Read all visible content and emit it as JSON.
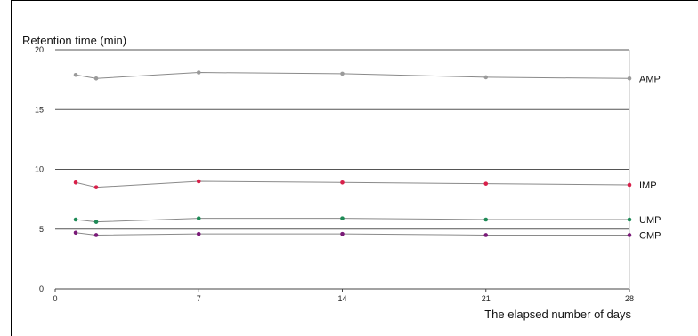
{
  "chart_data": {
    "type": "line",
    "title": "",
    "ylabel": "Retention time (min)",
    "xlabel": "The elapsed number of days",
    "xlim": [
      0,
      28
    ],
    "ylim": [
      0,
      20
    ],
    "x_ticks": [
      0,
      7,
      14,
      21,
      28
    ],
    "y_ticks": [
      0,
      5,
      10,
      15,
      20
    ],
    "x": [
      1,
      2,
      7,
      14,
      21,
      28
    ],
    "grid": "horizontal lines at 5, 10, 15, 20",
    "legend": "labels at right end of each line",
    "series": [
      {
        "name": "AMP",
        "values": [
          17.9,
          17.6,
          18.1,
          18.0,
          17.7,
          17.6
        ],
        "color": "#9a9a9a"
      },
      {
        "name": "IMP",
        "values": [
          8.9,
          8.5,
          9.0,
          8.9,
          8.8,
          8.7
        ],
        "color": "#d8204a"
      },
      {
        "name": "UMP",
        "values": [
          5.8,
          5.6,
          5.9,
          5.9,
          5.8,
          5.8
        ],
        "color": "#1e8a56"
      },
      {
        "name": "CMP",
        "values": [
          4.7,
          4.5,
          4.6,
          4.6,
          4.5,
          4.5
        ],
        "color": "#7a1a78"
      }
    ]
  }
}
